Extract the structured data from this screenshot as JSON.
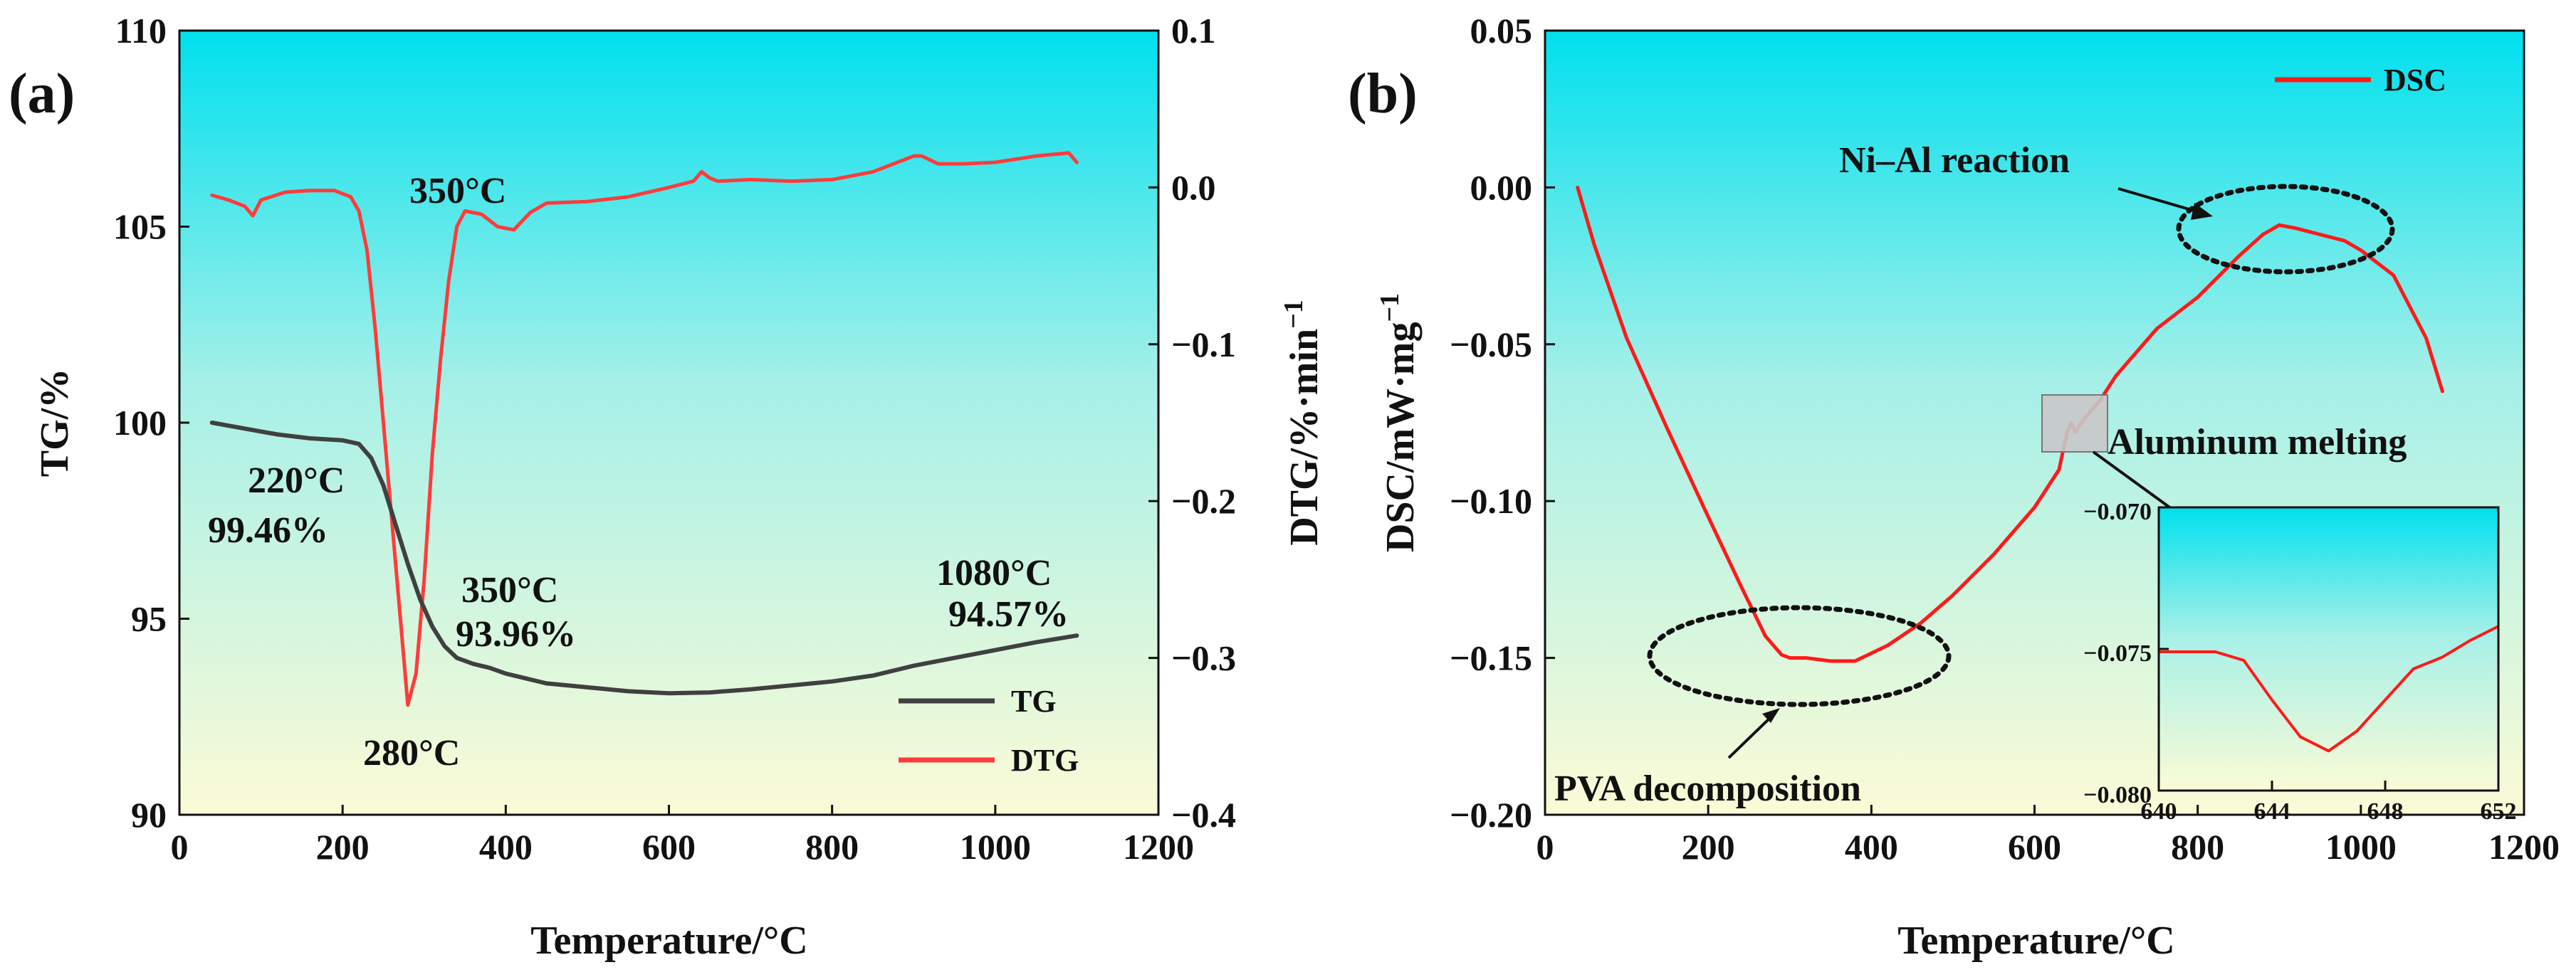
{
  "chart_data": [
    {
      "panel": "(a)",
      "type": "line",
      "xlabel": "Temperature/°C",
      "ylabel": "TG/%",
      "ylabel_right": "DTG/%·min",
      "ylabel_right_sup": "−1",
      "xlim": [
        0,
        1200
      ],
      "ylim": [
        90,
        110
      ],
      "ylim_right": [
        -0.4,
        0.1
      ],
      "xticks": [
        "0",
        "200",
        "400",
        "600",
        "800",
        "1000",
        "1200"
      ],
      "yticks": [
        "90",
        "95",
        "100",
        "105",
        "110"
      ],
      "yticks_right": [
        "−0.4",
        "−0.3",
        "−0.2",
        "−0.1",
        "0.0",
        "0.1"
      ],
      "legend": {
        "placement": "bottom-right"
      },
      "series": [
        {
          "name": "TG",
          "axis": "left",
          "color": "#404040",
          "x": [
            40,
            80,
            120,
            160,
            200,
            220,
            235,
            250,
            265,
            280,
            295,
            310,
            325,
            340,
            360,
            380,
            400,
            450,
            500,
            550,
            600,
            650,
            700,
            750,
            800,
            850,
            900,
            950,
            1000,
            1050,
            1100
          ],
          "y": [
            100.0,
            99.85,
            99.7,
            99.6,
            99.55,
            99.46,
            99.1,
            98.4,
            97.4,
            96.4,
            95.5,
            94.8,
            94.3,
            94.0,
            93.85,
            93.75,
            93.6,
            93.35,
            93.25,
            93.15,
            93.1,
            93.12,
            93.2,
            93.3,
            93.4,
            93.55,
            93.8,
            94.0,
            94.2,
            94.4,
            94.57
          ]
        },
        {
          "name": "DTG",
          "axis": "right",
          "color": "#ff3b3b",
          "x": [
            40,
            60,
            80,
            90,
            100,
            130,
            160,
            190,
            210,
            220,
            230,
            240,
            250,
            260,
            270,
            280,
            290,
            300,
            310,
            320,
            330,
            340,
            350,
            370,
            390,
            410,
            430,
            450,
            500,
            550,
            600,
            630,
            640,
            650,
            660,
            700,
            750,
            800,
            850,
            900,
            910,
            930,
            960,
            1000,
            1050,
            1090,
            1100
          ],
          "y": [
            -0.005,
            -0.008,
            -0.012,
            -0.018,
            -0.008,
            -0.003,
            -0.002,
            -0.002,
            -0.006,
            -0.015,
            -0.04,
            -0.09,
            -0.15,
            -0.21,
            -0.27,
            -0.33,
            -0.31,
            -0.25,
            -0.17,
            -0.11,
            -0.06,
            -0.025,
            -0.015,
            -0.017,
            -0.025,
            -0.027,
            -0.016,
            -0.01,
            -0.009,
            -0.006,
            0.0,
            0.004,
            0.01,
            0.006,
            0.004,
            0.005,
            0.004,
            0.005,
            0.01,
            0.02,
            0.02,
            0.015,
            0.015,
            0.016,
            0.02,
            0.022,
            0.016
          ]
        }
      ],
      "annotations": [
        {
          "id": "peak",
          "text": "350°C",
          "x": 330,
          "y_right": 0.0
        },
        {
          "id": "onset_temp",
          "text": "220°C",
          "x": 160,
          "y": 98.4
        },
        {
          "id": "onset_value",
          "text": "99.46%",
          "x": 130,
          "y": 97.3
        },
        {
          "id": "mid_temp",
          "text": "350°C",
          "x": 430,
          "y": 96.0
        },
        {
          "id": "mid_value",
          "text": "93.96%",
          "x": 430,
          "y": 94.8
        },
        {
          "id": "end_temp",
          "text": "1080°C",
          "x": 1010,
          "y": 96.7
        },
        {
          "id": "end_value",
          "text": "94.57%",
          "x": 1030,
          "y": 95.5
        },
        {
          "id": "min",
          "text": "280°C",
          "x": 280,
          "y": 91.7
        }
      ]
    },
    {
      "panel": "(b)",
      "type": "line",
      "xlabel": "Temperature/°C",
      "ylabel": "DSC/mW·mg",
      "ylabel_sup": "−1",
      "xlim": [
        0,
        1200
      ],
      "ylim": [
        -0.2,
        0.05
      ],
      "xticks": [
        "0",
        "200",
        "400",
        "600",
        "800",
        "1000",
        "1200"
      ],
      "yticks": [
        "−0.20",
        "−0.15",
        "−0.10",
        "−0.05",
        "0.00",
        "0.05"
      ],
      "legend": {
        "placement": "top-right"
      },
      "series": [
        {
          "name": "DSC",
          "color": "#ff1a1a",
          "x": [
            40,
            60,
            100,
            150,
            200,
            240,
            270,
            290,
            300,
            320,
            350,
            380,
            420,
            460,
            500,
            550,
            600,
            630,
            640,
            645,
            650,
            660,
            680,
            700,
            750,
            800,
            850,
            880,
            900,
            920,
            950,
            980,
            1000,
            1040,
            1080,
            1100
          ],
          "y": [
            0.0,
            -0.018,
            -0.048,
            -0.077,
            -0.105,
            -0.127,
            -0.143,
            -0.149,
            -0.15,
            -0.15,
            -0.151,
            -0.151,
            -0.146,
            -0.139,
            -0.13,
            -0.117,
            -0.102,
            -0.09,
            -0.078,
            -0.075,
            -0.078,
            -0.074,
            -0.068,
            -0.06,
            -0.045,
            -0.035,
            -0.022,
            -0.015,
            -0.012,
            -0.013,
            -0.015,
            -0.017,
            -0.02,
            -0.028,
            -0.048,
            -0.065
          ]
        }
      ],
      "annotations": [
        {
          "id": "nial",
          "text": "Ni–Al reaction",
          "x": 830,
          "y": 0.008
        },
        {
          "id": "almelt",
          "text": "Aluminum melting",
          "x": 960,
          "y": -0.081
        },
        {
          "id": "pva",
          "text": "PVA decomposition",
          "x": 420,
          "y": -0.19
        }
      ],
      "inset": {
        "xlim": [
          640,
          652
        ],
        "ylim": [
          -0.08,
          -0.07
        ],
        "xticks": [
          "640",
          "644",
          "648",
          "652"
        ],
        "yticks": [
          "−0.080",
          "−0.075",
          "−0.070"
        ],
        "x": [
          640,
          641,
          642,
          643,
          644,
          645,
          646,
          647,
          648,
          649,
          650,
          651,
          652
        ],
        "y": [
          -0.0751,
          -0.0751,
          -0.0751,
          -0.0754,
          -0.0768,
          -0.0781,
          -0.0786,
          -0.0779,
          -0.0768,
          -0.0757,
          -0.0753,
          -0.0747,
          -0.0742
        ]
      }
    }
  ]
}
